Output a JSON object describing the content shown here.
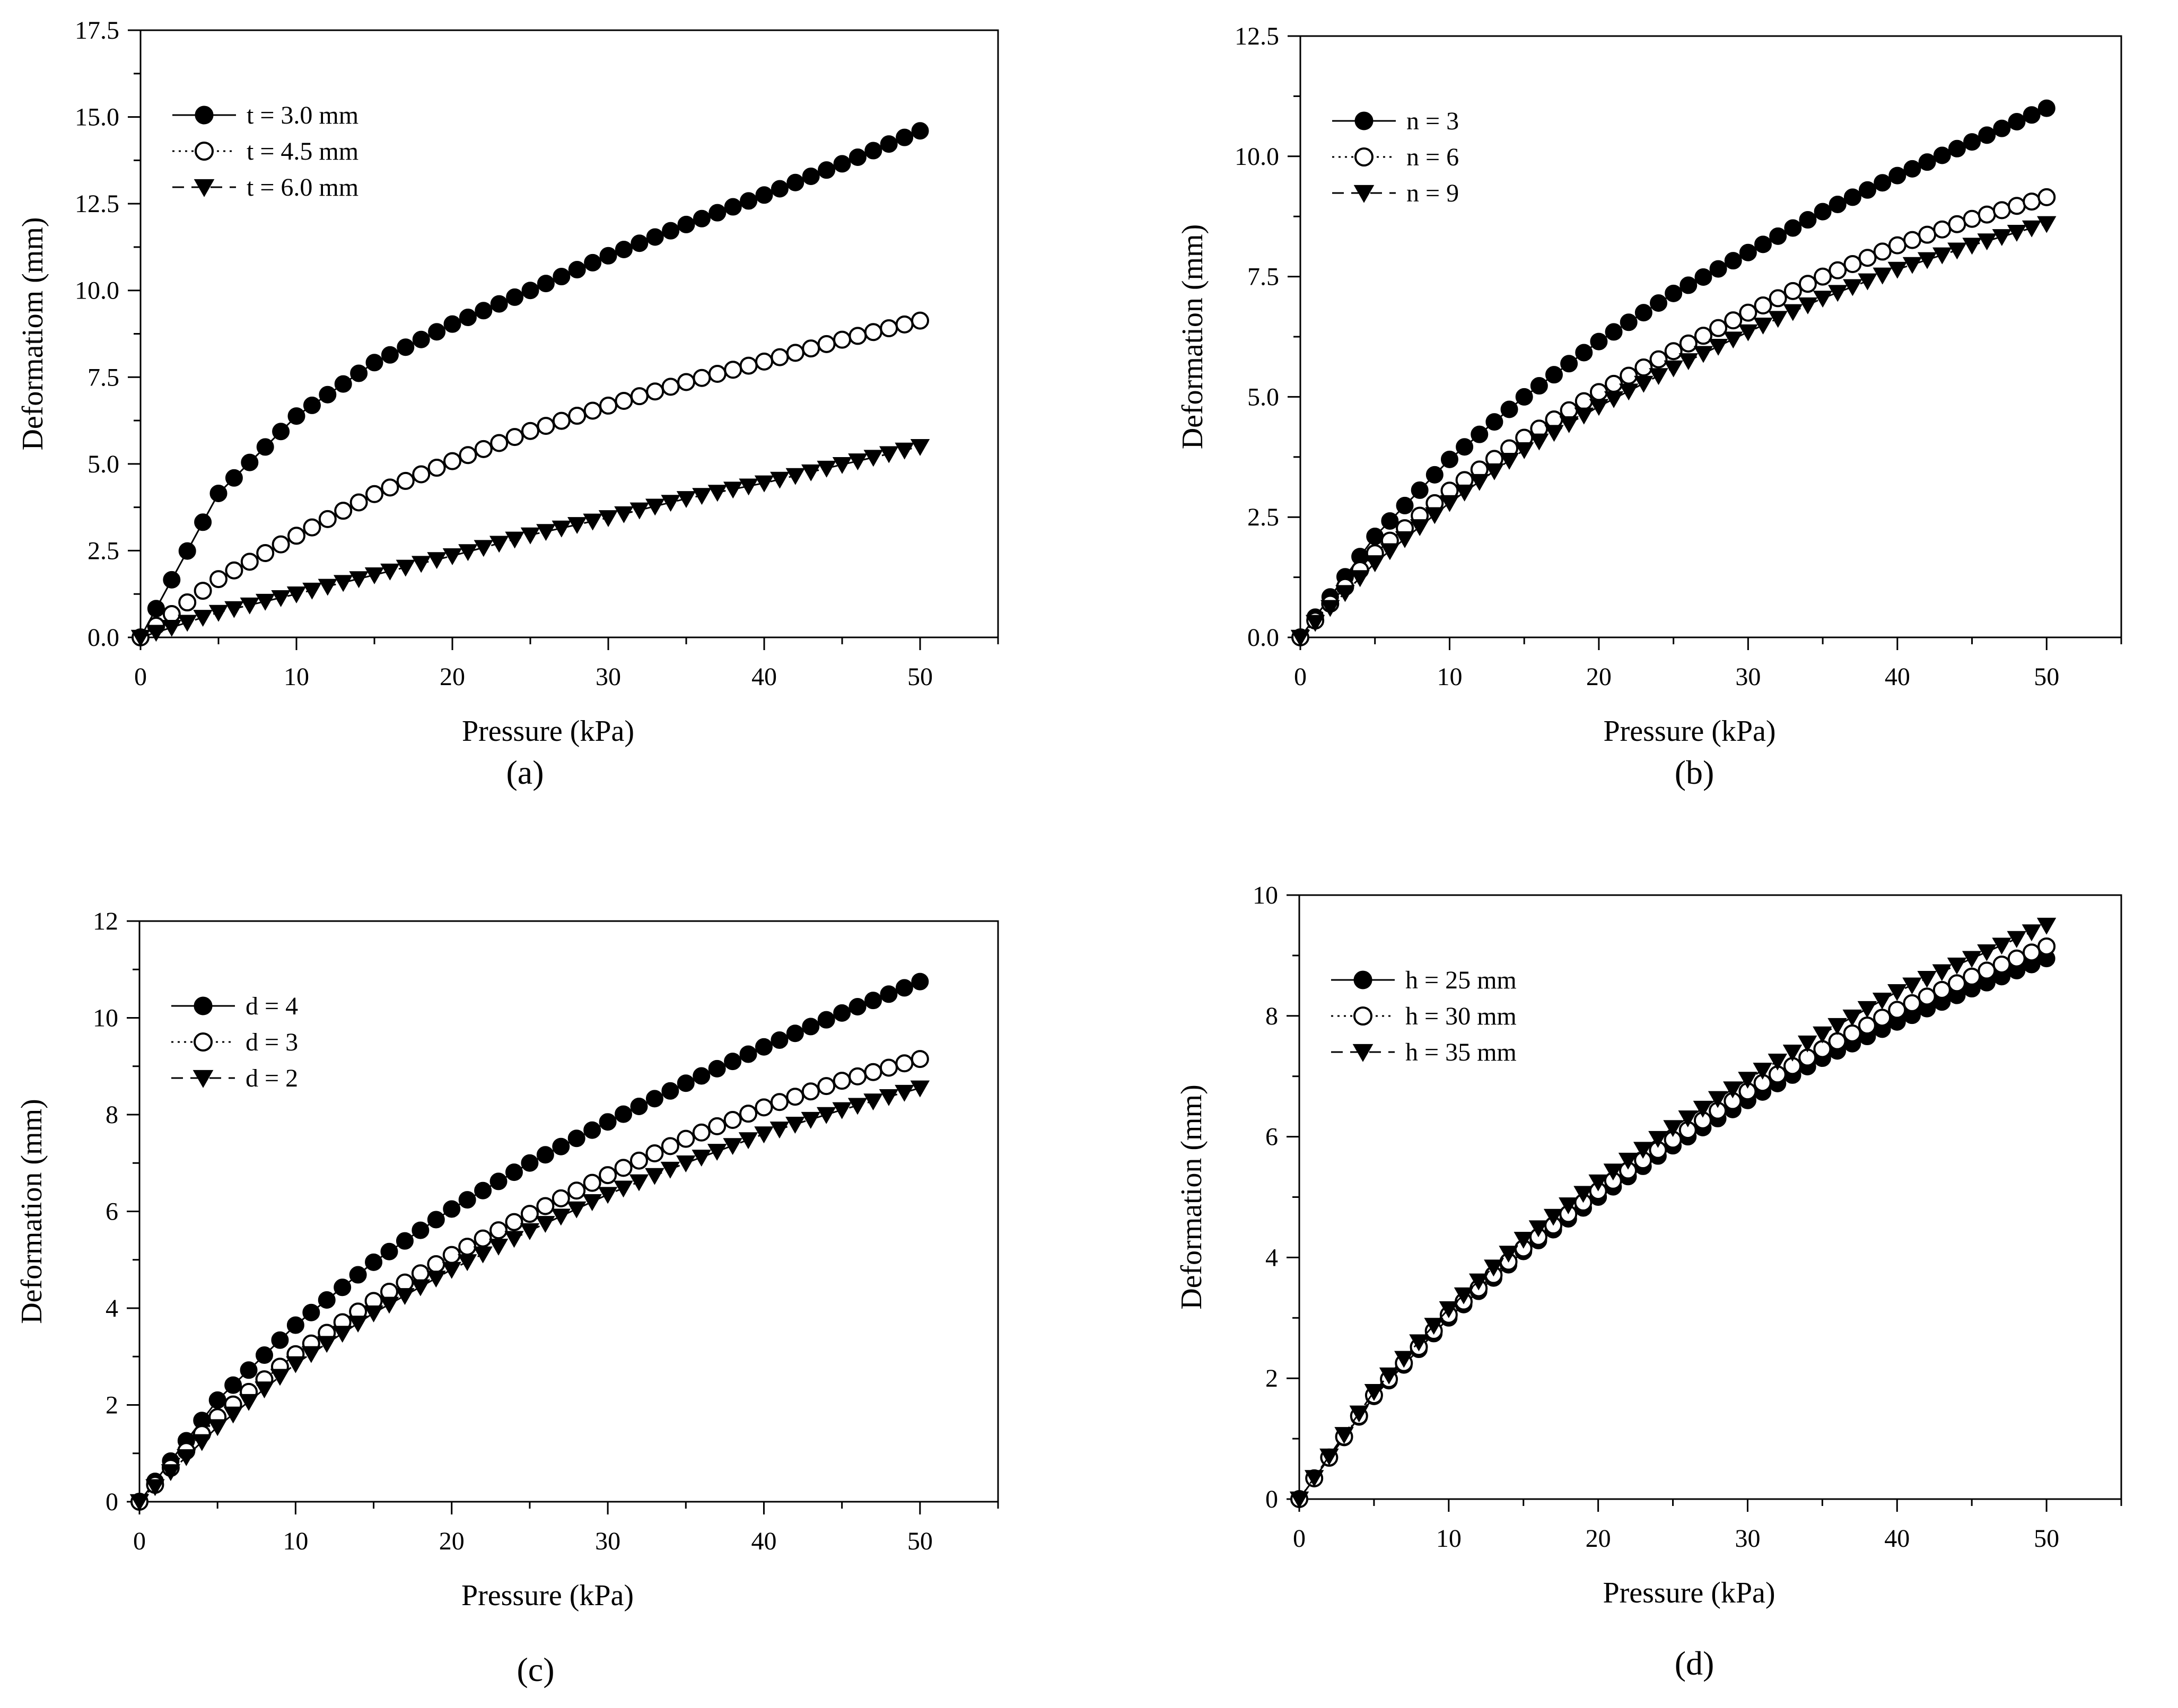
{
  "chart_data": [
    {
      "type": "line",
      "panel_label": "(a)",
      "xlabel": "Pressure (kPa)",
      "ylabel": "Deformatiom (mm)",
      "xlim": [
        0,
        55
      ],
      "ylim": [
        0,
        17.5
      ],
      "xticks": [
        "0",
        "10",
        "20",
        "30",
        "40",
        "50"
      ],
      "yticks": [
        "0.0",
        "2.5",
        "5.0",
        "7.5",
        "10.0",
        "12.5",
        "15.0",
        "17.5"
      ],
      "legend_position": "top-left",
      "x": [
        0,
        5,
        10,
        15,
        20,
        25,
        30,
        35,
        40,
        45,
        50
      ],
      "series": [
        {
          "name": "t = 3.0 mm",
          "marker": "filled-circle",
          "line": "solid",
          "values": [
            0,
            4.15,
            6.38,
            7.92,
            9.03,
            10.0,
            11.0,
            11.9,
            12.75,
            13.65,
            14.6
          ]
        },
        {
          "name": "t = 4.5 mm",
          "marker": "open-circle",
          "line": "dotted",
          "values": [
            0,
            1.68,
            2.93,
            4.13,
            5.08,
            5.95,
            6.68,
            7.36,
            7.95,
            8.58,
            9.13
          ]
        },
        {
          "name": "t = 6.0 mm",
          "marker": "filled-triangle-down",
          "line": "dashed",
          "values": [
            0,
            0.72,
            1.25,
            1.8,
            2.35,
            2.95,
            3.45,
            4.0,
            4.45,
            4.98,
            5.5
          ]
        }
      ]
    },
    {
      "type": "line",
      "panel_label": "(b)",
      "xlabel": "Pressure (kPa)",
      "ylabel": "Deformation (mm)",
      "xlim": [
        0,
        55
      ],
      "ylim": [
        0,
        12.5
      ],
      "xticks": [
        "0",
        "10",
        "20",
        "30",
        "40",
        "50"
      ],
      "yticks": [
        "0.0",
        "2.5",
        "5.0",
        "7.5",
        "10.0",
        "12.5"
      ],
      "legend_position": "top-left",
      "x": [
        0,
        5,
        10,
        15,
        20,
        25,
        30,
        35,
        40,
        45,
        50
      ],
      "series": [
        {
          "name": "n = 3",
          "marker": "filled-circle",
          "line": "solid",
          "values": [
            0,
            2.1,
            3.7,
            5.0,
            6.15,
            7.15,
            8.0,
            8.85,
            9.6,
            10.3,
            11.0
          ]
        },
        {
          "name": "n = 6",
          "marker": "open-circle",
          "line": "dotted",
          "values": [
            0,
            1.75,
            3.05,
            4.15,
            5.1,
            5.95,
            6.75,
            7.5,
            8.15,
            8.7,
            9.15
          ]
        },
        {
          "name": "n = 9",
          "marker": "filled-triangle-down",
          "line": "dashed",
          "values": [
            0,
            1.55,
            2.8,
            3.9,
            4.8,
            5.6,
            6.35,
            7.05,
            7.65,
            8.15,
            8.6
          ]
        }
      ]
    },
    {
      "type": "line",
      "panel_label": "(c)",
      "xlabel": "Pressure (kPa)",
      "ylabel": "Deformation (mm)",
      "xlim": [
        0,
        55
      ],
      "ylim": [
        0,
        12
      ],
      "xticks": [
        "0",
        "10",
        "20",
        "30",
        "40",
        "50"
      ],
      "yticks": [
        "0",
        "2",
        "4",
        "6",
        "8",
        "10",
        "12"
      ],
      "legend_position": "top-left",
      "x": [
        0,
        5,
        10,
        15,
        20,
        25,
        30,
        35,
        40,
        45,
        50
      ],
      "series": [
        {
          "name": "d = 4",
          "marker": "filled-circle",
          "line": "solid",
          "values": [
            0,
            2.1,
            3.65,
            4.95,
            6.05,
            7.0,
            7.85,
            8.65,
            9.4,
            10.1,
            10.75
          ]
        },
        {
          "name": "d = 3",
          "marker": "open-circle",
          "line": "dotted",
          "values": [
            0,
            1.75,
            3.05,
            4.15,
            5.1,
            5.95,
            6.75,
            7.5,
            8.15,
            8.7,
            9.15
          ]
        },
        {
          "name": "d = 2",
          "marker": "filled-triangle-down",
          "line": "dashed",
          "values": [
            0,
            1.55,
            2.85,
            3.9,
            4.8,
            5.6,
            6.35,
            7.0,
            7.6,
            8.1,
            8.55
          ]
        }
      ]
    },
    {
      "type": "line",
      "panel_label": "(d)",
      "xlabel": "Pressure (kPa)",
      "ylabel": "Deformation (mm)",
      "xlim": [
        0,
        55
      ],
      "ylim": [
        0,
        10
      ],
      "xticks": [
        "0",
        "10",
        "20",
        "30",
        "40",
        "50"
      ],
      "yticks": [
        "0",
        "2",
        "4",
        "6",
        "8",
        "10"
      ],
      "legend_position": "top-left",
      "x": [
        0,
        5,
        10,
        15,
        20,
        25,
        30,
        35,
        40,
        45,
        50
      ],
      "series": [
        {
          "name": "h = 25 mm",
          "marker": "filled-circle",
          "line": "solid",
          "values": [
            0,
            1.7,
            3.0,
            4.1,
            5.0,
            5.85,
            6.6,
            7.3,
            7.9,
            8.45,
            8.95
          ]
        },
        {
          "name": "h = 30 mm",
          "marker": "open-circle",
          "line": "dotted",
          "values": [
            0,
            1.72,
            3.05,
            4.15,
            5.1,
            5.95,
            6.75,
            7.45,
            8.1,
            8.65,
            9.15
          ]
        },
        {
          "name": "h = 35 mm",
          "marker": "filled-triangle-down",
          "line": "dashed",
          "values": [
            0,
            1.78,
            3.15,
            4.3,
            5.25,
            6.15,
            6.95,
            7.7,
            8.4,
            8.95,
            9.5
          ]
        }
      ]
    }
  ]
}
